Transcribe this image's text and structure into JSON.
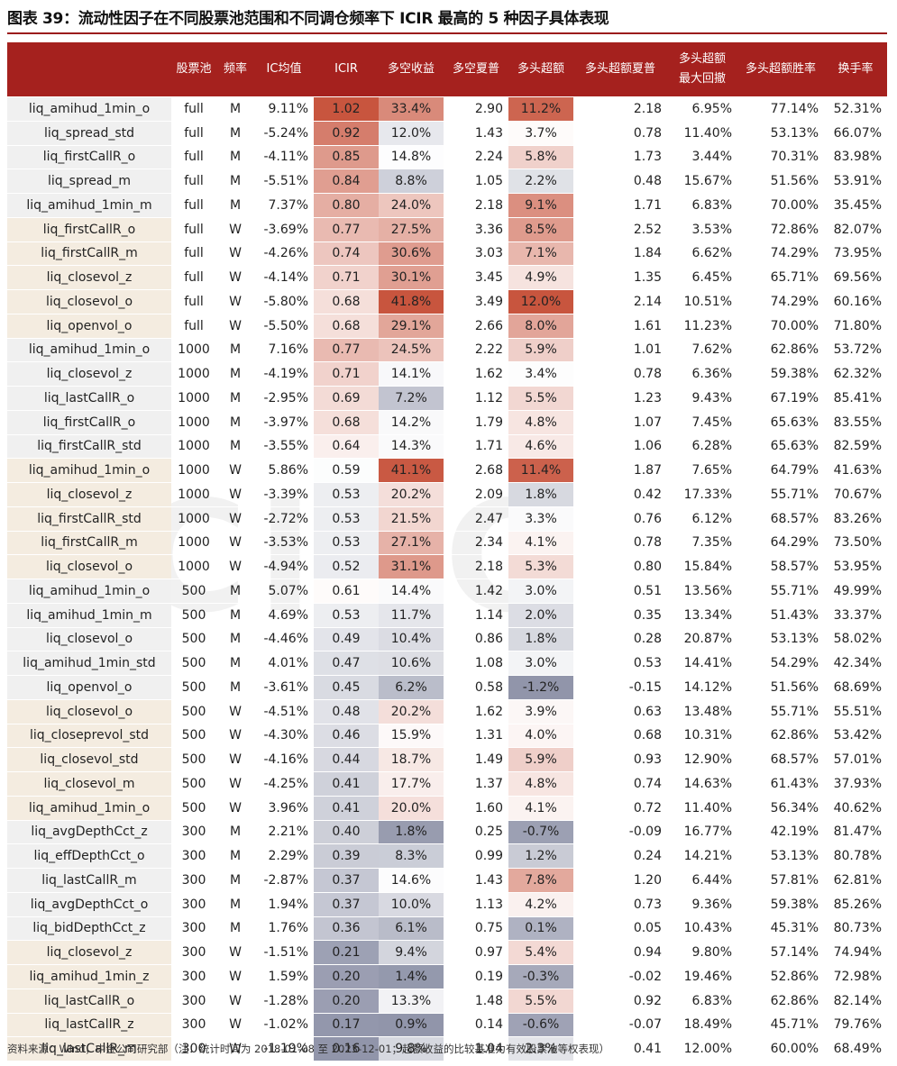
{
  "title": "图表 39：流动性因子在不同股票池范围和不同调仓频率下 ICIR 最高的 5 种因子具体表现",
  "source": "资料来源：Wind，中金公司研究部（注：统计时间为 2018-01-08 至 2023-12-01；超额收益的比较基准为有效股票池等权表现）",
  "watermark": "CICC",
  "colors": {
    "header_bg": "#a5211e",
    "name_bg_monthly": "#f0f0f0",
    "name_bg_weekly": "#f4ece0",
    "heat_high": "#c8553e",
    "heat_low": "#7d829b"
  },
  "headers": [
    "",
    "股票池",
    "频率",
    "IC均值",
    "ICIR",
    "多空收益",
    "多空夏普",
    "多头超额",
    "多头超额夏普",
    "多头超额\n最大回撤",
    "多头超额胜率",
    "换手率"
  ],
  "rows": [
    [
      "liq_amihud_1min_o",
      "full",
      "M",
      "9.11%",
      "1.02",
      "33.4%",
      "2.90",
      "11.2%",
      "2.18",
      "6.95%",
      "77.14%",
      "52.31%"
    ],
    [
      "liq_spread_std",
      "full",
      "M",
      "-5.24%",
      "0.92",
      "12.0%",
      "1.43",
      "3.7%",
      "0.78",
      "11.40%",
      "53.13%",
      "66.07%"
    ],
    [
      "liq_firstCallR_o",
      "full",
      "M",
      "-4.11%",
      "0.85",
      "14.8%",
      "2.24",
      "5.8%",
      "1.73",
      "3.44%",
      "70.31%",
      "83.98%"
    ],
    [
      "liq_spread_m",
      "full",
      "M",
      "-5.51%",
      "0.84",
      "8.8%",
      "1.05",
      "2.2%",
      "0.48",
      "15.67%",
      "51.56%",
      "53.91%"
    ],
    [
      "liq_amihud_1min_m",
      "full",
      "M",
      "7.37%",
      "0.80",
      "24.0%",
      "2.18",
      "9.1%",
      "1.71",
      "6.83%",
      "70.00%",
      "35.45%"
    ],
    [
      "liq_firstCallR_o",
      "full",
      "W",
      "-3.69%",
      "0.77",
      "27.5%",
      "3.36",
      "8.5%",
      "2.52",
      "3.53%",
      "72.86%",
      "82.07%"
    ],
    [
      "liq_firstCallR_m",
      "full",
      "W",
      "-4.26%",
      "0.74",
      "30.6%",
      "3.03",
      "7.1%",
      "1.84",
      "6.62%",
      "74.29%",
      "73.95%"
    ],
    [
      "liq_closevol_z",
      "full",
      "W",
      "-4.14%",
      "0.71",
      "30.1%",
      "3.45",
      "4.9%",
      "1.35",
      "6.45%",
      "65.71%",
      "69.56%"
    ],
    [
      "liq_closevol_o",
      "full",
      "W",
      "-5.80%",
      "0.68",
      "41.8%",
      "3.49",
      "12.0%",
      "2.14",
      "10.51%",
      "74.29%",
      "60.16%"
    ],
    [
      "liq_openvol_o",
      "full",
      "W",
      "-5.50%",
      "0.68",
      "29.1%",
      "2.66",
      "8.0%",
      "1.61",
      "11.23%",
      "70.00%",
      "71.80%"
    ],
    [
      "liq_amihud_1min_o",
      "1000",
      "M",
      "7.16%",
      "0.77",
      "24.5%",
      "2.22",
      "5.9%",
      "1.01",
      "7.62%",
      "62.86%",
      "53.72%"
    ],
    [
      "liq_closevol_z",
      "1000",
      "M",
      "-4.19%",
      "0.71",
      "14.1%",
      "1.62",
      "3.4%",
      "0.78",
      "6.36%",
      "59.38%",
      "62.32%"
    ],
    [
      "liq_lastCallR_o",
      "1000",
      "M",
      "-2.95%",
      "0.69",
      "7.2%",
      "1.12",
      "5.5%",
      "1.23",
      "9.43%",
      "67.19%",
      "85.41%"
    ],
    [
      "liq_firstCallR_o",
      "1000",
      "M",
      "-3.97%",
      "0.68",
      "14.2%",
      "1.79",
      "4.8%",
      "1.07",
      "7.45%",
      "65.63%",
      "83.55%"
    ],
    [
      "liq_firstCallR_std",
      "1000",
      "M",
      "-3.55%",
      "0.64",
      "14.3%",
      "1.71",
      "4.6%",
      "1.06",
      "6.28%",
      "65.63%",
      "82.59%"
    ],
    [
      "liq_amihud_1min_o",
      "1000",
      "W",
      "5.86%",
      "0.59",
      "41.1%",
      "2.68",
      "11.4%",
      "1.87",
      "7.65%",
      "64.79%",
      "41.63%"
    ],
    [
      "liq_closevol_z",
      "1000",
      "W",
      "-3.39%",
      "0.53",
      "20.2%",
      "2.09",
      "1.8%",
      "0.42",
      "17.33%",
      "55.71%",
      "70.67%"
    ],
    [
      "liq_firstCallR_std",
      "1000",
      "W",
      "-2.72%",
      "0.53",
      "21.5%",
      "2.47",
      "3.3%",
      "0.76",
      "6.12%",
      "68.57%",
      "83.26%"
    ],
    [
      "liq_firstCallR_m",
      "1000",
      "W",
      "-3.53%",
      "0.53",
      "27.1%",
      "2.34",
      "4.1%",
      "0.78",
      "7.35%",
      "64.29%",
      "73.50%"
    ],
    [
      "liq_closevol_o",
      "1000",
      "W",
      "-4.94%",
      "0.52",
      "31.1%",
      "2.18",
      "5.3%",
      "0.80",
      "15.84%",
      "58.57%",
      "53.95%"
    ],
    [
      "liq_amihud_1min_o",
      "500",
      "M",
      "5.07%",
      "0.61",
      "14.4%",
      "1.42",
      "3.0%",
      "0.51",
      "13.56%",
      "55.71%",
      "49.99%"
    ],
    [
      "liq_amihud_1min_m",
      "500",
      "M",
      "4.69%",
      "0.53",
      "11.7%",
      "1.14",
      "2.0%",
      "0.35",
      "13.34%",
      "51.43%",
      "33.37%"
    ],
    [
      "liq_closevol_o",
      "500",
      "M",
      "-4.46%",
      "0.49",
      "10.4%",
      "0.86",
      "1.8%",
      "0.28",
      "20.87%",
      "53.13%",
      "58.02%"
    ],
    [
      "liq_amihud_1min_std",
      "500",
      "M",
      "4.01%",
      "0.47",
      "10.6%",
      "1.08",
      "3.0%",
      "0.53",
      "14.41%",
      "54.29%",
      "42.34%"
    ],
    [
      "liq_openvol_o",
      "500",
      "M",
      "-3.61%",
      "0.45",
      "6.2%",
      "0.58",
      "-1.2%",
      "-0.15",
      "14.12%",
      "51.56%",
      "68.69%"
    ],
    [
      "liq_closevol_o",
      "500",
      "W",
      "-4.51%",
      "0.48",
      "20.2%",
      "1.62",
      "3.9%",
      "0.63",
      "13.48%",
      "55.71%",
      "55.51%"
    ],
    [
      "liq_closeprevol_std",
      "500",
      "W",
      "-4.30%",
      "0.46",
      "15.9%",
      "1.31",
      "4.0%",
      "0.68",
      "10.31%",
      "62.86%",
      "53.42%"
    ],
    [
      "liq_closevol_std",
      "500",
      "W",
      "-4.16%",
      "0.44",
      "18.7%",
      "1.49",
      "5.9%",
      "0.93",
      "12.90%",
      "68.57%",
      "57.01%"
    ],
    [
      "liq_closevol_m",
      "500",
      "W",
      "-4.25%",
      "0.41",
      "17.7%",
      "1.37",
      "4.8%",
      "0.74",
      "14.63%",
      "61.43%",
      "37.93%"
    ],
    [
      "liq_amihud_1min_o",
      "500",
      "W",
      "3.96%",
      "0.41",
      "20.0%",
      "1.60",
      "4.1%",
      "0.72",
      "11.40%",
      "56.34%",
      "40.62%"
    ],
    [
      "liq_avgDepthCct_z",
      "300",
      "M",
      "2.21%",
      "0.40",
      "1.8%",
      "0.25",
      "-0.7%",
      "-0.09",
      "16.77%",
      "42.19%",
      "81.47%"
    ],
    [
      "liq_effDepthCct_o",
      "300",
      "M",
      "2.29%",
      "0.39",
      "8.3%",
      "0.99",
      "1.2%",
      "0.24",
      "14.21%",
      "53.13%",
      "80.78%"
    ],
    [
      "liq_lastCallR_m",
      "300",
      "M",
      "-2.87%",
      "0.37",
      "14.6%",
      "1.43",
      "7.8%",
      "1.20",
      "6.44%",
      "57.81%",
      "62.81%"
    ],
    [
      "liq_avgDepthCct_o",
      "300",
      "M",
      "1.94%",
      "0.37",
      "10.0%",
      "1.13",
      "4.2%",
      "0.73",
      "9.36%",
      "59.38%",
      "85.26%"
    ],
    [
      "liq_bidDepthCct_z",
      "300",
      "M",
      "1.76%",
      "0.36",
      "6.1%",
      "0.75",
      "0.1%",
      "0.05",
      "10.43%",
      "45.31%",
      "80.73%"
    ],
    [
      "liq_closevol_z",
      "300",
      "W",
      "-1.51%",
      "0.21",
      "9.4%",
      "0.97",
      "5.4%",
      "0.94",
      "9.80%",
      "57.14%",
      "74.94%"
    ],
    [
      "liq_amihud_1min_z",
      "300",
      "W",
      "1.59%",
      "0.20",
      "1.4%",
      "0.19",
      "-0.3%",
      "-0.02",
      "19.46%",
      "52.86%",
      "72.98%"
    ],
    [
      "liq_lastCallR_o",
      "300",
      "W",
      "-1.28%",
      "0.20",
      "13.3%",
      "1.48",
      "5.5%",
      "0.92",
      "6.83%",
      "62.86%",
      "82.14%"
    ],
    [
      "liq_lastCallR_z",
      "300",
      "W",
      "-1.02%",
      "0.17",
      "0.9%",
      "0.14",
      "-0.6%",
      "-0.07",
      "18.49%",
      "45.71%",
      "79.76%"
    ],
    [
      "liq_lastCallR_m",
      "300",
      "W",
      "-1.19%",
      "0.16",
      "9.8%",
      "1.04",
      "2.3%",
      "0.41",
      "12.00%",
      "60.00%",
      "68.49%"
    ]
  ]
}
